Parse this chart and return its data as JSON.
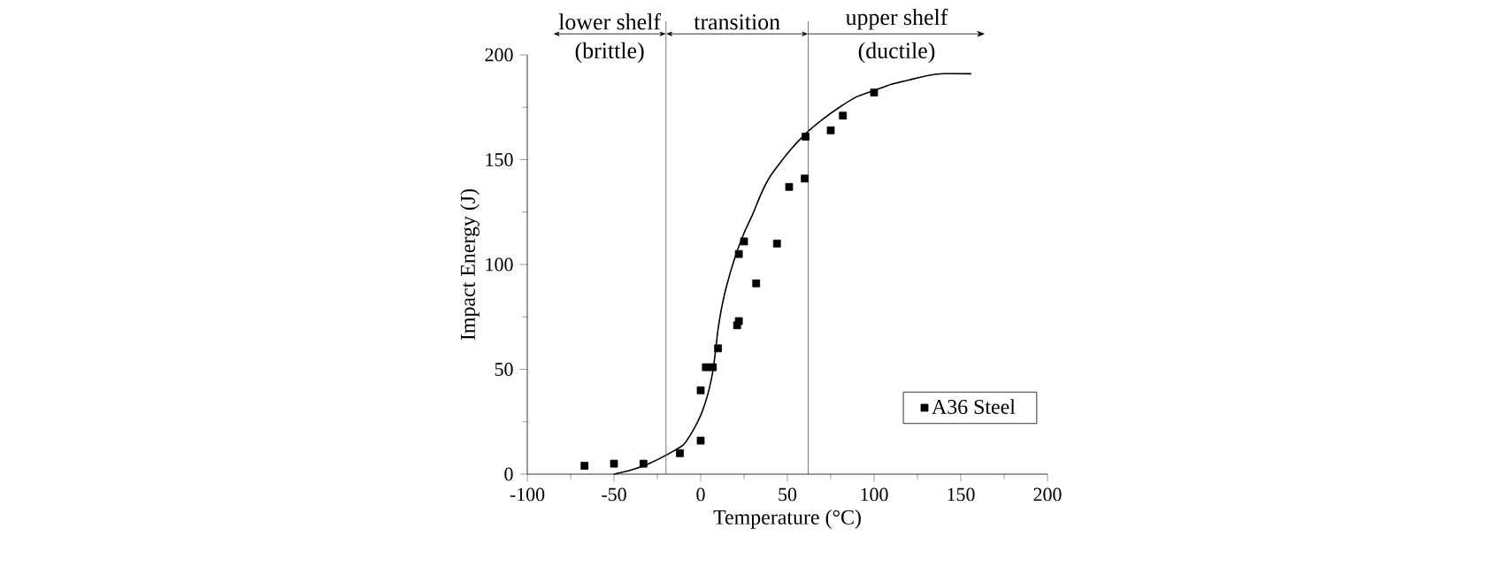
{
  "chart_data": {
    "type": "scatter",
    "xlabel": "Temperature (°C)",
    "ylabel": "Impact  Energy (J)",
    "xlim": [
      -100,
      200
    ],
    "ylim": [
      0,
      200
    ],
    "xticks": [
      -100,
      -50,
      0,
      50,
      100,
      150,
      200
    ],
    "yticks": [
      0,
      50,
      100,
      150,
      200
    ],
    "legend": "bottom right",
    "marker": "square",
    "grid": false,
    "series": [
      {
        "name": "A36 Steel",
        "type": "scatter",
        "color": "#000000",
        "x": [
          -67,
          -50,
          -33,
          -12,
          0,
          0,
          3,
          7,
          10,
          21,
          22,
          22,
          25,
          32,
          44,
          51,
          60,
          60.5,
          75,
          82,
          100
        ],
        "values": [
          4,
          5,
          5,
          10,
          16,
          40,
          51,
          51,
          60,
          71,
          73,
          105,
          111,
          91,
          110,
          137,
          141,
          161,
          164,
          171,
          182
        ]
      },
      {
        "type": "line",
        "color": "#000000",
        "marker": "none",
        "x": [
          -50,
          -40,
          -30,
          -20,
          -10,
          -5,
          0,
          3,
          5,
          7,
          8,
          9,
          10,
          12,
          15,
          20,
          25,
          30,
          35,
          40,
          50,
          60,
          70,
          80,
          90,
          100,
          110,
          120,
          130,
          140,
          156
        ],
        "values": [
          0,
          2,
          5,
          9,
          14,
          20,
          28,
          35,
          41,
          49,
          55,
          62,
          69,
          79,
          90,
          104,
          115,
          124,
          134,
          142,
          153,
          162,
          169,
          175,
          180,
          183,
          186,
          188,
          190,
          191,
          191
        ]
      }
    ],
    "ref_lines": [
      {
        "axis": "x",
        "value": -20,
        "color": "#555555"
      },
      {
        "axis": "x",
        "value": 62,
        "color": "#555555"
      }
    ],
    "annotations": [
      "lower shelf",
      "(brittle)",
      "transition",
      "upper shelf",
      "(ductile)"
    ]
  }
}
